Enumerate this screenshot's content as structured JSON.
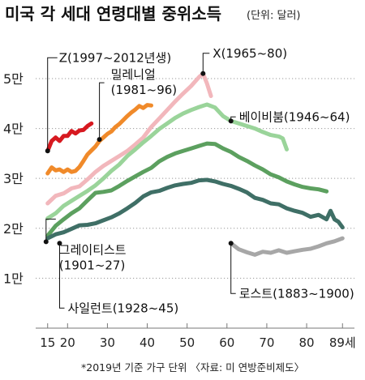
{
  "chart_data": {
    "type": "line",
    "title": "미국 각 세대 연령대별 중위소득",
    "unit_note": "(단위: 달러)",
    "footnote": "*2019년 기준 가구 단위 〈자료: 미 연방준비제도〉",
    "x_ticks": [
      "15",
      "20",
      "30",
      "40",
      "50",
      "60",
      "70",
      "80",
      "89세"
    ],
    "y_ticks": [
      "1만",
      "2만",
      "3만",
      "4만",
      "5만"
    ],
    "xlim": [
      12,
      92
    ],
    "ylim": [
      0,
      56000
    ],
    "grid": true,
    "series": [
      {
        "name": "Z(1997~2012년생)",
        "label_lines": [
          "Z(1997~2012년생)"
        ],
        "color": "#d71920",
        "x": [
          15,
          16,
          17,
          18,
          19,
          20,
          21,
          22,
          23,
          24,
          25,
          26
        ],
        "y": [
          35500,
          37500,
          38200,
          37500,
          38500,
          38500,
          39500,
          39000,
          39600,
          39700,
          40500,
          41000
        ]
      },
      {
        "name": "밀레니얼(1981~96)",
        "label_lines": [
          "밀레니얼",
          "(1981~96)"
        ],
        "color": "#f08a2a",
        "x": [
          15,
          16,
          17,
          18,
          19,
          20,
          21,
          22,
          23,
          24,
          25,
          26,
          27,
          28,
          29,
          30,
          31,
          32,
          33,
          34,
          35,
          36,
          37,
          38,
          39,
          40,
          41
        ],
        "y": [
          31000,
          32200,
          31600,
          31800,
          31300,
          31800,
          31300,
          31500,
          32300,
          33500,
          34800,
          35600,
          36400,
          37500,
          38200,
          38900,
          39400,
          40300,
          40900,
          41700,
          42500,
          43200,
          43800,
          44500,
          44100,
          44700,
          44600
        ]
      },
      {
        "name": "X(1965~80)",
        "label_lines": [
          "X(1965~80)"
        ],
        "color": "#f2b7bc",
        "x": [
          15,
          17,
          19,
          21,
          23,
          25,
          27,
          29,
          31,
          33,
          35,
          37,
          39,
          41,
          43,
          45,
          47,
          49,
          51,
          53,
          54,
          55,
          56
        ],
        "y": [
          25000,
          26500,
          27000,
          28000,
          28400,
          29800,
          31300,
          32500,
          33500,
          34500,
          35500,
          36800,
          38200,
          40300,
          42000,
          43700,
          45400,
          47000,
          48500,
          50300,
          51000,
          49000,
          46500
        ]
      },
      {
        "name": "베이비붐(1946~64)",
        "label_lines": [
          "베이비붐(1946~64)"
        ],
        "color": "#9ad49a",
        "x": [
          15,
          17,
          19,
          21,
          23,
          25,
          27,
          29,
          31,
          33,
          35,
          37,
          39,
          41,
          43,
          45,
          47,
          49,
          51,
          53,
          55,
          57,
          59,
          61,
          63,
          65,
          67,
          69,
          71,
          73,
          74,
          75
        ],
        "y": [
          22000,
          23000,
          24500,
          25500,
          26500,
          27500,
          28600,
          30000,
          31500,
          32800,
          34500,
          35800,
          37200,
          38500,
          39900,
          41000,
          42100,
          43000,
          43700,
          44300,
          44800,
          44200,
          42500,
          41500,
          41000,
          40500,
          40000,
          39300,
          38700,
          38400,
          38000,
          35800
        ]
      },
      {
        "name": "사일런트(1928~45)",
        "label_lines": [
          "사일런트(1928~45)"
        ],
        "color": "#5ca05f",
        "x": [
          15,
          17,
          19,
          21,
          23,
          25,
          27,
          29,
          31,
          33,
          35,
          37,
          39,
          41,
          43,
          45,
          47,
          49,
          51,
          53,
          55,
          57,
          59,
          61,
          63,
          65,
          67,
          69,
          71,
          73,
          75,
          77,
          79,
          81,
          83,
          85
        ],
        "y": [
          18500,
          20500,
          21800,
          23000,
          24000,
          25600,
          27100,
          27300,
          27600,
          28500,
          29500,
          30400,
          31300,
          32100,
          33400,
          34300,
          35000,
          35500,
          36000,
          36500,
          37000,
          36900,
          36000,
          35300,
          34300,
          33500,
          32600,
          31800,
          30800,
          30200,
          29400,
          28800,
          28300,
          28000,
          27800,
          27400
        ]
      },
      {
        "name": "그레이티스트(1901~27)",
        "label_lines": [
          "그레이티스트",
          "(1901~27)"
        ],
        "color": "#3f6f66",
        "x": [
          15,
          17,
          19,
          21,
          23,
          25,
          27,
          29,
          31,
          33,
          35,
          37,
          39,
          41,
          43,
          45,
          47,
          49,
          51,
          53,
          55,
          57,
          59,
          61,
          63,
          65,
          67,
          69,
          71,
          73,
          75,
          77,
          79,
          81,
          83,
          85,
          86,
          87,
          88,
          89
        ],
        "y": [
          18000,
          18800,
          19200,
          19900,
          20600,
          20700,
          21000,
          21600,
          22200,
          23000,
          24000,
          25100,
          26400,
          27200,
          27500,
          28100,
          28600,
          28900,
          29100,
          29600,
          29700,
          29400,
          28900,
          28500,
          27900,
          27200,
          26100,
          25700,
          25000,
          24800,
          24000,
          23500,
          23100,
          22300,
          22700,
          21800,
          23500,
          21800,
          21300,
          20200
        ]
      },
      {
        "name": "로스트(1883~1900)",
        "label_lines": [
          "로스트(1883~1900)"
        ],
        "color": "#a7a7a7",
        "x": [
          61,
          63,
          65,
          67,
          69,
          71,
          73,
          75,
          77,
          79,
          81,
          83,
          85,
          87,
          89
        ],
        "y": [
          17000,
          15800,
          15200,
          14700,
          15300,
          15100,
          15600,
          15100,
          15400,
          15700,
          15900,
          16400,
          17000,
          17400,
          18000
        ]
      }
    ]
  }
}
